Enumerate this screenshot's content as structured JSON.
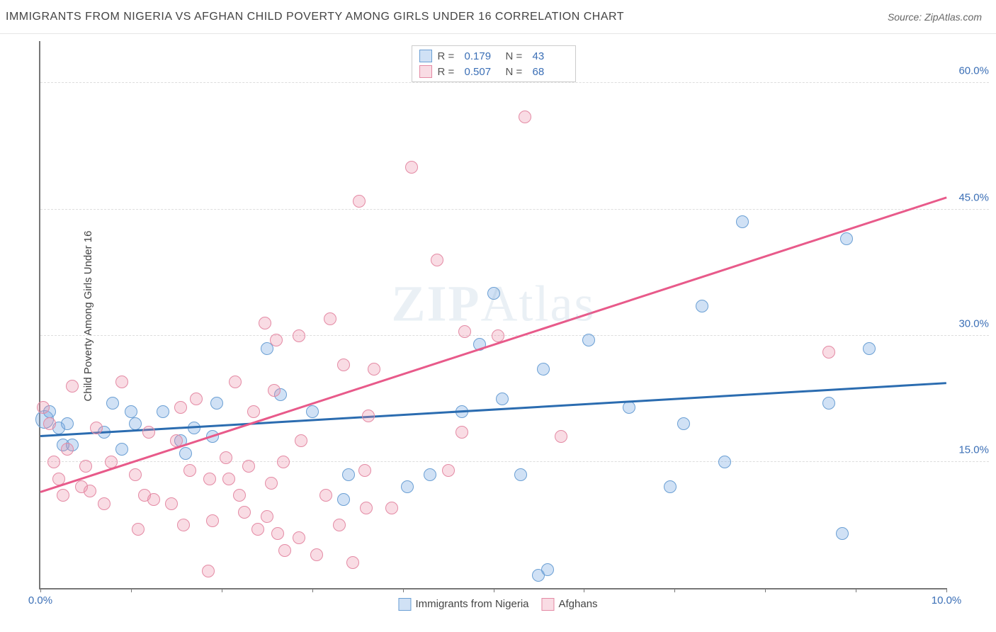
{
  "header": {
    "title": "IMMIGRANTS FROM NIGERIA VS AFGHAN CHILD POVERTY AMONG GIRLS UNDER 16 CORRELATION CHART",
    "source_label": "Source:",
    "source_value": "ZipAtlas.com"
  },
  "ylabel": "Child Poverty Among Girls Under 16",
  "watermark": {
    "bold": "ZIP",
    "light": "Atlas"
  },
  "chart": {
    "type": "scatter",
    "xlim": [
      0,
      10
    ],
    "ylim": [
      0,
      65
    ],
    "x_ticks": [
      0,
      1,
      2,
      3,
      4,
      5,
      6,
      7,
      8,
      9,
      10
    ],
    "x_tick_labels": {
      "0": "0.0%",
      "10": "10.0%"
    },
    "y_ticks": [
      15,
      30,
      45,
      60
    ],
    "y_tick_labels": {
      "15": "15.0%",
      "30": "30.0%",
      "45": "45.0%",
      "60": "60.0%"
    },
    "background_color": "#ffffff",
    "grid_color": "#dddddd",
    "axis_color": "#777777",
    "tick_label_color": "#3b6fb6",
    "marker_radius": 9,
    "marker_stroke_width": 1.5,
    "series": [
      {
        "name": "Immigrants from Nigeria",
        "fill": "rgba(120,170,225,0.35)",
        "stroke": "#6a9fd4",
        "r_value": "0.179",
        "n_value": "43",
        "trend": {
          "x1": 0,
          "y1": 18.2,
          "x2": 10,
          "y2": 24.5,
          "color": "#2b6cb0",
          "width": 2.5
        },
        "points": [
          {
            "x": 0.05,
            "y": 20,
            "r": 13
          },
          {
            "x": 0.1,
            "y": 21
          },
          {
            "x": 0.2,
            "y": 19
          },
          {
            "x": 0.25,
            "y": 17
          },
          {
            "x": 0.3,
            "y": 19.5
          },
          {
            "x": 0.35,
            "y": 17
          },
          {
            "x": 0.7,
            "y": 18.5
          },
          {
            "x": 0.8,
            "y": 22
          },
          {
            "x": 0.9,
            "y": 16.5
          },
          {
            "x": 1.0,
            "y": 21
          },
          {
            "x": 1.05,
            "y": 19.5
          },
          {
            "x": 1.35,
            "y": 21
          },
          {
            "x": 1.55,
            "y": 17.5
          },
          {
            "x": 1.6,
            "y": 16
          },
          {
            "x": 1.7,
            "y": 19
          },
          {
            "x": 1.9,
            "y": 18
          },
          {
            "x": 1.95,
            "y": 22
          },
          {
            "x": 2.5,
            "y": 28.5
          },
          {
            "x": 2.65,
            "y": 23
          },
          {
            "x": 3.0,
            "y": 21
          },
          {
            "x": 3.35,
            "y": 10.5
          },
          {
            "x": 3.4,
            "y": 13.5
          },
          {
            "x": 4.05,
            "y": 12
          },
          {
            "x": 4.3,
            "y": 13.5
          },
          {
            "x": 4.65,
            "y": 21
          },
          {
            "x": 4.85,
            "y": 29
          },
          {
            "x": 5.0,
            "y": 35
          },
          {
            "x": 5.1,
            "y": 22.5
          },
          {
            "x": 5.3,
            "y": 13.5
          },
          {
            "x": 5.5,
            "y": 1.5
          },
          {
            "x": 5.55,
            "y": 26
          },
          {
            "x": 5.6,
            "y": 2.2
          },
          {
            "x": 6.05,
            "y": 29.5
          },
          {
            "x": 6.5,
            "y": 21.5
          },
          {
            "x": 6.95,
            "y": 12
          },
          {
            "x": 7.1,
            "y": 19.5
          },
          {
            "x": 7.3,
            "y": 33.5
          },
          {
            "x": 7.55,
            "y": 15
          },
          {
            "x": 7.75,
            "y": 43.5
          },
          {
            "x": 8.7,
            "y": 22
          },
          {
            "x": 8.85,
            "y": 6.5
          },
          {
            "x": 8.9,
            "y": 41.5
          },
          {
            "x": 9.15,
            "y": 28.5
          }
        ]
      },
      {
        "name": "Afghans",
        "fill": "rgba(235,140,165,0.30)",
        "stroke": "#e48aa4",
        "r_value": "0.507",
        "n_value": "68",
        "trend": {
          "x1": 0,
          "y1": 11.5,
          "x2": 10,
          "y2": 46.5,
          "color": "#e85a8a",
          "width": 2.5
        },
        "points": [
          {
            "x": 0.03,
            "y": 21.5
          },
          {
            "x": 0.1,
            "y": 19.5
          },
          {
            "x": 0.15,
            "y": 15
          },
          {
            "x": 0.2,
            "y": 13
          },
          {
            "x": 0.25,
            "y": 11
          },
          {
            "x": 0.3,
            "y": 16.5
          },
          {
            "x": 0.35,
            "y": 24
          },
          {
            "x": 0.45,
            "y": 12
          },
          {
            "x": 0.5,
            "y": 14.5
          },
          {
            "x": 0.55,
            "y": 11.5
          },
          {
            "x": 0.62,
            "y": 19
          },
          {
            "x": 0.7,
            "y": 10
          },
          {
            "x": 0.78,
            "y": 15
          },
          {
            "x": 0.9,
            "y": 24.5
          },
          {
            "x": 1.05,
            "y": 13.5
          },
          {
            "x": 1.08,
            "y": 7
          },
          {
            "x": 1.15,
            "y": 11
          },
          {
            "x": 1.2,
            "y": 18.5
          },
          {
            "x": 1.25,
            "y": 10.5
          },
          {
            "x": 1.45,
            "y": 10
          },
          {
            "x": 1.5,
            "y": 17.5
          },
          {
            "x": 1.55,
            "y": 21.5
          },
          {
            "x": 1.58,
            "y": 7.5
          },
          {
            "x": 1.65,
            "y": 14
          },
          {
            "x": 1.72,
            "y": 22.5
          },
          {
            "x": 1.85,
            "y": 2
          },
          {
            "x": 1.87,
            "y": 13
          },
          {
            "x": 1.9,
            "y": 8
          },
          {
            "x": 2.05,
            "y": 15.5
          },
          {
            "x": 2.08,
            "y": 13
          },
          {
            "x": 2.15,
            "y": 24.5
          },
          {
            "x": 2.2,
            "y": 11
          },
          {
            "x": 2.25,
            "y": 9
          },
          {
            "x": 2.3,
            "y": 14.5
          },
          {
            "x": 2.35,
            "y": 21
          },
          {
            "x": 2.4,
            "y": 7
          },
          {
            "x": 2.48,
            "y": 31.5
          },
          {
            "x": 2.5,
            "y": 8.5
          },
          {
            "x": 2.55,
            "y": 12.5
          },
          {
            "x": 2.58,
            "y": 23.5
          },
          {
            "x": 2.6,
            "y": 29.5
          },
          {
            "x": 2.62,
            "y": 6.5
          },
          {
            "x": 2.68,
            "y": 15
          },
          {
            "x": 2.7,
            "y": 4.5
          },
          {
            "x": 2.85,
            "y": 6
          },
          {
            "x": 2.85,
            "y": 30
          },
          {
            "x": 2.88,
            "y": 17.5
          },
          {
            "x": 3.05,
            "y": 4
          },
          {
            "x": 3.15,
            "y": 11
          },
          {
            "x": 3.2,
            "y": 32
          },
          {
            "x": 3.3,
            "y": 7.5
          },
          {
            "x": 3.35,
            "y": 26.5
          },
          {
            "x": 3.45,
            "y": 3
          },
          {
            "x": 3.52,
            "y": 46
          },
          {
            "x": 3.58,
            "y": 14
          },
          {
            "x": 3.6,
            "y": 9.5
          },
          {
            "x": 3.62,
            "y": 20.5
          },
          {
            "x": 3.68,
            "y": 26
          },
          {
            "x": 3.88,
            "y": 9.5
          },
          {
            "x": 4.1,
            "y": 50
          },
          {
            "x": 4.38,
            "y": 39
          },
          {
            "x": 4.5,
            "y": 14
          },
          {
            "x": 4.65,
            "y": 18.5
          },
          {
            "x": 4.68,
            "y": 30.5
          },
          {
            "x": 5.05,
            "y": 30
          },
          {
            "x": 5.35,
            "y": 56
          },
          {
            "x": 5.75,
            "y": 18
          },
          {
            "x": 8.7,
            "y": 28
          }
        ]
      }
    ]
  },
  "legend_labels": {
    "R": "R =",
    "N": "N ="
  }
}
